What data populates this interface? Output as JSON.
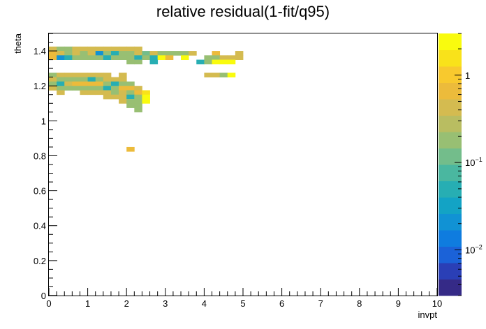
{
  "chart_data": {
    "type": "heatmap",
    "title": "relative residual(1-fit/q95)",
    "xlabel": "invpt",
    "ylabel": "theta",
    "xlim": [
      0,
      10
    ],
    "ylim": [
      0,
      1.5
    ],
    "x_ticks": [
      "0",
      "1",
      "2",
      "3",
      "4",
      "5",
      "6",
      "7",
      "8",
      "9",
      "10"
    ],
    "y_ticks": [
      "0",
      "0.2",
      "0.4",
      "0.6",
      "0.8",
      "1",
      "1.2",
      "1.4"
    ],
    "z_scale": "log",
    "z_range": [
      0.003,
      3
    ],
    "colorbar_ticks": [
      {
        "label": "1",
        "value": 1
      },
      {
        "label": "10",
        "sup": "−1",
        "value": 0.1
      },
      {
        "label": "10",
        "sup": "−2",
        "value": 0.01
      }
    ],
    "bin_size": {
      "x": 0.2,
      "y": 0.025
    },
    "colormap": [
      "#352a87",
      "#2a3fb6",
      "#1b62d8",
      "#0f7cdf",
      "#1192d4",
      "#13a3c5",
      "#27aeb3",
      "#4ab7a0",
      "#73bd8b",
      "#98bf73",
      "#b9bd61",
      "#d4bb50",
      "#ecbb3b",
      "#f8c92e",
      "#f9e21a",
      "#f9fb0e"
    ],
    "points": [
      {
        "x": 0.1,
        "y": 1.4125,
        "z": 0.35
      },
      {
        "x": 0.3,
        "y": 1.4125,
        "z": 0.2
      },
      {
        "x": 0.5,
        "y": 1.4125,
        "z": 0.2
      },
      {
        "x": 0.7,
        "y": 1.4125,
        "z": 0.4
      },
      {
        "x": 0.9,
        "y": 1.4125,
        "z": 0.4
      },
      {
        "x": 1.1,
        "y": 1.4125,
        "z": 0.4
      },
      {
        "x": 1.3,
        "y": 1.4125,
        "z": 0.4
      },
      {
        "x": 1.5,
        "y": 1.4125,
        "z": 0.4
      },
      {
        "x": 1.7,
        "y": 1.4125,
        "z": 0.4
      },
      {
        "x": 1.9,
        "y": 1.4125,
        "z": 0.4
      },
      {
        "x": 2.1,
        "y": 1.4125,
        "z": 0.4
      },
      {
        "x": 2.3,
        "y": 1.4125,
        "z": 0.4
      },
      {
        "x": 0.1,
        "y": 1.3875,
        "z": 0.8
      },
      {
        "x": 0.3,
        "y": 1.3875,
        "z": 0.4
      },
      {
        "x": 0.5,
        "y": 1.3875,
        "z": 0.2
      },
      {
        "x": 0.7,
        "y": 1.3875,
        "z": 0.4
      },
      {
        "x": 0.9,
        "y": 1.3875,
        "z": 0.15
      },
      {
        "x": 1.1,
        "y": 1.3875,
        "z": 0.4
      },
      {
        "x": 1.3,
        "y": 1.3875,
        "z": 0.02
      },
      {
        "x": 1.5,
        "y": 1.3875,
        "z": 0.15
      },
      {
        "x": 1.7,
        "y": 1.3875,
        "z": 0.05
      },
      {
        "x": 1.9,
        "y": 1.3875,
        "z": 0.15
      },
      {
        "x": 2.1,
        "y": 1.3875,
        "z": 0.15
      },
      {
        "x": 2.3,
        "y": 1.3875,
        "z": 0.4
      },
      {
        "x": 2.5,
        "y": 1.3875,
        "z": 0.1
      },
      {
        "x": 2.7,
        "y": 1.3875,
        "z": 0.4
      },
      {
        "x": 2.9,
        "y": 1.3875,
        "z": 0.2
      },
      {
        "x": 3.1,
        "y": 1.3875,
        "z": 0.2
      },
      {
        "x": 3.3,
        "y": 1.3875,
        "z": 0.2
      },
      {
        "x": 3.5,
        "y": 1.3875,
        "z": 0.15
      },
      {
        "x": 3.7,
        "y": 1.3875,
        "z": 0.4
      },
      {
        "x": 4.3,
        "y": 1.3875,
        "z": 0.7
      },
      {
        "x": 4.9,
        "y": 1.3875,
        "z": 0.4
      },
      {
        "x": 0.1,
        "y": 1.3625,
        "z": 0.7
      },
      {
        "x": 0.3,
        "y": 1.3625,
        "z": 0.02
      },
      {
        "x": 0.5,
        "y": 1.3625,
        "z": 0.05
      },
      {
        "x": 0.7,
        "y": 1.3625,
        "z": 0.15
      },
      {
        "x": 0.9,
        "y": 1.3625,
        "z": 0.15
      },
      {
        "x": 1.1,
        "y": 1.3625,
        "z": 0.15
      },
      {
        "x": 1.3,
        "y": 1.3625,
        "z": 0.15
      },
      {
        "x": 1.5,
        "y": 1.3625,
        "z": 0.05
      },
      {
        "x": 1.7,
        "y": 1.3625,
        "z": 0.15
      },
      {
        "x": 1.9,
        "y": 1.3625,
        "z": 0.15
      },
      {
        "x": 2.1,
        "y": 1.3625,
        "z": 0.15
      },
      {
        "x": 2.3,
        "y": 1.3625,
        "z": 0.05
      },
      {
        "x": 2.5,
        "y": 1.3625,
        "z": 0.15
      },
      {
        "x": 2.7,
        "y": 1.3625,
        "z": 0.05
      },
      {
        "x": 2.9,
        "y": 1.3625,
        "z": 2.5
      },
      {
        "x": 3.1,
        "y": 1.3625,
        "z": 0.8
      },
      {
        "x": 3.5,
        "y": 1.3625,
        "z": 2.5
      },
      {
        "x": 4.1,
        "y": 1.3625,
        "z": 0.15
      },
      {
        "x": 4.3,
        "y": 1.3625,
        "z": 0.2
      },
      {
        "x": 4.5,
        "y": 1.3625,
        "z": 0.4
      },
      {
        "x": 4.7,
        "y": 1.3625,
        "z": 0.4
      },
      {
        "x": 4.9,
        "y": 1.3625,
        "z": 0.4
      },
      {
        "x": 2.1,
        "y": 1.3375,
        "z": 0.15
      },
      {
        "x": 2.3,
        "y": 1.3375,
        "z": 0.15
      },
      {
        "x": 2.7,
        "y": 1.3375,
        "z": 0.05
      },
      {
        "x": 3.9,
        "y": 1.3375,
        "z": 0.05
      },
      {
        "x": 4.1,
        "y": 1.3375,
        "z": 0.15
      },
      {
        "x": 4.3,
        "y": 1.3375,
        "z": 2.5
      },
      {
        "x": 4.5,
        "y": 1.3375,
        "z": 2.5
      },
      {
        "x": 4.7,
        "y": 1.3375,
        "z": 2.5
      },
      {
        "x": 4.1,
        "y": 1.2625,
        "z": 0.4
      },
      {
        "x": 4.3,
        "y": 1.2625,
        "z": 0.4
      },
      {
        "x": 4.5,
        "y": 1.2625,
        "z": 0.15
      },
      {
        "x": 4.7,
        "y": 1.2625,
        "z": 2.5
      },
      {
        "x": 0.1,
        "y": 1.2625,
        "z": 0.2
      },
      {
        "x": 0.3,
        "y": 1.2625,
        "z": 0.4
      },
      {
        "x": 0.5,
        "y": 1.2625,
        "z": 0.4
      },
      {
        "x": 0.7,
        "y": 1.2625,
        "z": 0.4
      },
      {
        "x": 0.9,
        "y": 1.2625,
        "z": 0.4
      },
      {
        "x": 1.1,
        "y": 1.2625,
        "z": 0.4
      },
      {
        "x": 1.3,
        "y": 1.2625,
        "z": 0.4
      },
      {
        "x": 1.5,
        "y": 1.2625,
        "z": 0.4
      },
      {
        "x": 1.9,
        "y": 1.2625,
        "z": 0.4
      },
      {
        "x": 0.1,
        "y": 1.2375,
        "z": 0.4
      },
      {
        "x": 0.3,
        "y": 1.2375,
        "z": 0.2
      },
      {
        "x": 0.5,
        "y": 1.2375,
        "z": 0.2
      },
      {
        "x": 0.7,
        "y": 1.2375,
        "z": 0.2
      },
      {
        "x": 0.9,
        "y": 1.2375,
        "z": 0.2
      },
      {
        "x": 1.1,
        "y": 1.2375,
        "z": 0.05
      },
      {
        "x": 1.3,
        "y": 1.2375,
        "z": 0.2
      },
      {
        "x": 1.5,
        "y": 1.2375,
        "z": 0.4
      },
      {
        "x": 1.7,
        "y": 1.2375,
        "z": 0.4
      },
      {
        "x": 1.9,
        "y": 1.2375,
        "z": 0.4
      },
      {
        "x": 0.1,
        "y": 1.2125,
        "z": 0.15
      },
      {
        "x": 0.3,
        "y": 1.2125,
        "z": 0.05
      },
      {
        "x": 0.5,
        "y": 1.2125,
        "z": 0.4
      },
      {
        "x": 0.7,
        "y": 1.2125,
        "z": 0.8
      },
      {
        "x": 0.9,
        "y": 1.2125,
        "z": 0.8
      },
      {
        "x": 1.1,
        "y": 1.2125,
        "z": 0.8
      },
      {
        "x": 1.3,
        "y": 1.2125,
        "z": 0.8
      },
      {
        "x": 1.5,
        "y": 1.2125,
        "z": 0.2
      },
      {
        "x": 1.7,
        "y": 1.2125,
        "z": 0.05
      },
      {
        "x": 1.9,
        "y": 1.2125,
        "z": 0.2
      },
      {
        "x": 2.1,
        "y": 1.2125,
        "z": 0.2
      },
      {
        "x": 0.1,
        "y": 1.1875,
        "z": 0.4
      },
      {
        "x": 0.3,
        "y": 1.1875,
        "z": 0.2
      },
      {
        "x": 0.5,
        "y": 1.1875,
        "z": 0.2
      },
      {
        "x": 0.7,
        "y": 1.1875,
        "z": 0.2
      },
      {
        "x": 0.9,
        "y": 1.1875,
        "z": 0.2
      },
      {
        "x": 1.1,
        "y": 1.1875,
        "z": 0.2
      },
      {
        "x": 1.3,
        "y": 1.1875,
        "z": 0.15
      },
      {
        "x": 1.5,
        "y": 1.1875,
        "z": 0.05
      },
      {
        "x": 1.7,
        "y": 1.1875,
        "z": 0.15
      },
      {
        "x": 1.9,
        "y": 1.1875,
        "z": 0.8
      },
      {
        "x": 2.1,
        "y": 1.1875,
        "z": 0.8
      },
      {
        "x": 2.3,
        "y": 1.1875,
        "z": 0.4
      },
      {
        "x": 0.3,
        "y": 1.1625,
        "z": 0.4
      },
      {
        "x": 0.9,
        "y": 1.1625,
        "z": 0.4
      },
      {
        "x": 1.1,
        "y": 1.1625,
        "z": 0.4
      },
      {
        "x": 1.3,
        "y": 1.1625,
        "z": 0.4
      },
      {
        "x": 1.5,
        "y": 1.1625,
        "z": 0.4
      },
      {
        "x": 1.7,
        "y": 1.1625,
        "z": 0.2
      },
      {
        "x": 1.9,
        "y": 1.1625,
        "z": 0.4
      },
      {
        "x": 2.1,
        "y": 1.1625,
        "z": 0.2
      },
      {
        "x": 2.3,
        "y": 1.1625,
        "z": 0.8
      },
      {
        "x": 2.5,
        "y": 1.1625,
        "z": 1.5
      },
      {
        "x": 1.5,
        "y": 1.1375,
        "z": 0.4
      },
      {
        "x": 1.7,
        "y": 1.1375,
        "z": 0.4
      },
      {
        "x": 1.9,
        "y": 1.1375,
        "z": 0.4
      },
      {
        "x": 2.1,
        "y": 1.1375,
        "z": 0.05
      },
      {
        "x": 2.3,
        "y": 1.1375,
        "z": 0.2
      },
      {
        "x": 2.5,
        "y": 1.1375,
        "z": 2.5
      },
      {
        "x": 1.9,
        "y": 1.1125,
        "z": 0.4
      },
      {
        "x": 2.1,
        "y": 1.1125,
        "z": 0.2
      },
      {
        "x": 2.3,
        "y": 1.1125,
        "z": 0.15
      },
      {
        "x": 2.5,
        "y": 1.1125,
        "z": 2.5
      },
      {
        "x": 2.1,
        "y": 1.0875,
        "z": 0.2
      },
      {
        "x": 2.3,
        "y": 1.0875,
        "z": 0.2
      },
      {
        "x": 2.3,
        "y": 1.0625,
        "z": 0.2
      },
      {
        "x": 2.1,
        "y": 0.8375,
        "z": 0.8
      }
    ]
  }
}
